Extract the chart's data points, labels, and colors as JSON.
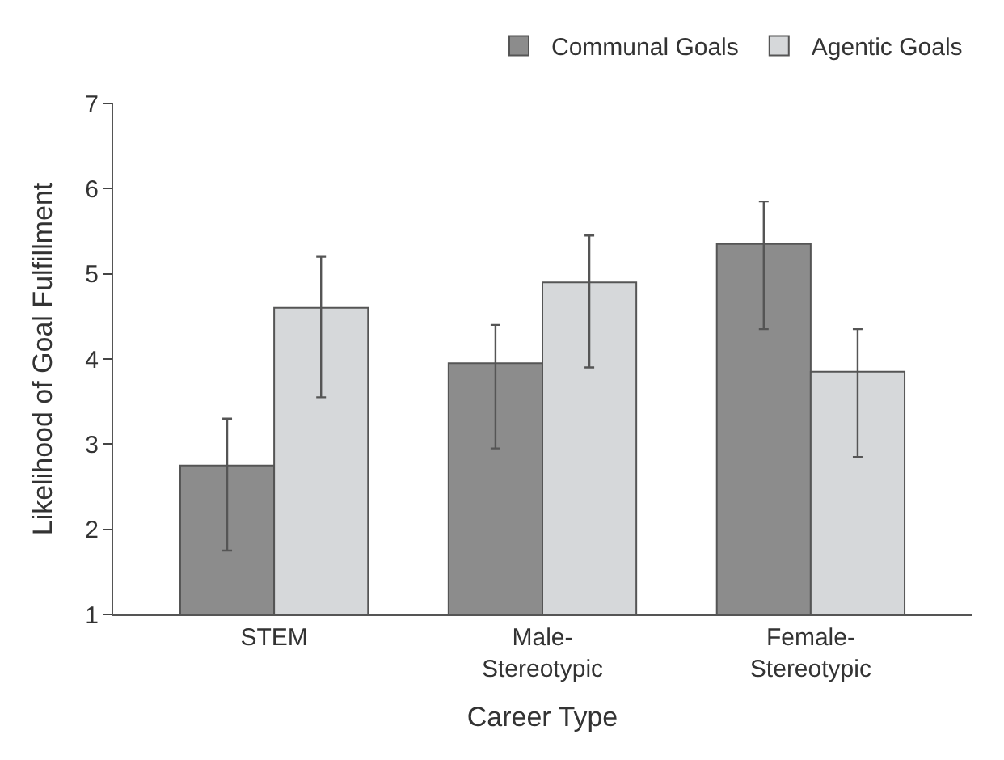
{
  "chart_data": {
    "type": "bar",
    "xlabel": "Career Type",
    "ylabel": "Likelihood of Goal Fulfillment",
    "categories": [
      "STEM",
      "Male-\nStereotypic",
      "Female-\nStereotypic"
    ],
    "series": [
      {
        "name": "Communal Goals",
        "color": "#8c8c8c",
        "values": [
          2.75,
          3.95,
          5.35
        ],
        "errors": [
          [
            1.75,
            3.3
          ],
          [
            2.95,
            4.4
          ],
          [
            4.35,
            5.85
          ]
        ]
      },
      {
        "name": "Agentic Goals",
        "color": "#d6d8da",
        "values": [
          4.6,
          4.9,
          3.85
        ],
        "errors": [
          [
            3.55,
            5.2
          ],
          [
            3.9,
            5.45
          ],
          [
            2.85,
            4.35
          ]
        ]
      }
    ],
    "ylim": [
      1,
      7
    ],
    "yticks": [
      1,
      2,
      3,
      4,
      5,
      6,
      7
    ],
    "grid": false,
    "legend": "top right"
  }
}
